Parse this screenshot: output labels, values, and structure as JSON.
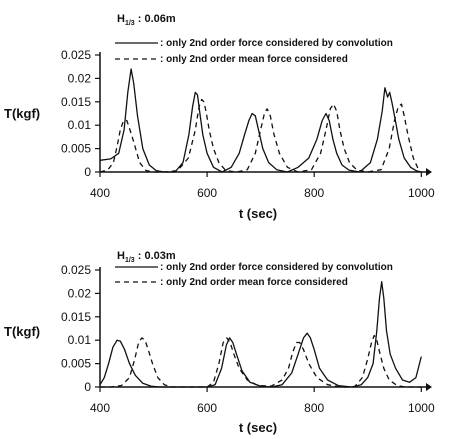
{
  "chart_data": [
    {
      "type": "line",
      "title": "H1/3 : 0.06m",
      "title_main": "H",
      "title_sub": "1/3",
      "title_rest": " : 0.06m",
      "xlabel": "t (sec)",
      "ylabel": "T(kgf)",
      "xlim": [
        400,
        1020
      ],
      "ylim": [
        0,
        0.025
      ],
      "xticks": [
        "400",
        "600",
        "800",
        "1000"
      ],
      "xtick_values": [
        400,
        600,
        800,
        1000
      ],
      "yticks": [
        "0",
        "0.005",
        "0.01",
        "0.015",
        "0.02",
        "0.025"
      ],
      "ytick_values": [
        0,
        0.005,
        0.01,
        0.015,
        0.02,
        0.025
      ],
      "grid": false,
      "legend_position": "top-center",
      "series": [
        {
          "name": ": only 2nd order force considered by convolution",
          "style": "solid",
          "x": [
            400,
            420,
            435,
            445,
            452,
            458,
            463,
            470,
            480,
            492,
            505,
            520,
            540,
            555,
            566,
            573,
            578,
            582,
            586,
            592,
            600,
            612,
            628,
            645,
            660,
            670,
            678,
            684,
            690,
            696,
            704,
            715,
            730,
            750,
            770,
            790,
            805,
            815,
            822,
            828,
            835,
            842,
            852,
            865,
            885,
            905,
            918,
            927,
            932,
            937,
            941,
            945,
            950,
            958,
            968,
            980,
            990,
            1000
          ],
          "y": [
            0.0025,
            0.0028,
            0.004,
            0.009,
            0.017,
            0.022,
            0.019,
            0.012,
            0.005,
            0.0015,
            0.0003,
            0,
            0,
            0.002,
            0.008,
            0.014,
            0.017,
            0.0165,
            0.013,
            0.008,
            0.004,
            0.001,
            0,
            0.001,
            0.004,
            0.008,
            0.011,
            0.0125,
            0.012,
            0.009,
            0.005,
            0.002,
            0.0005,
            0,
            0.001,
            0.003,
            0.007,
            0.011,
            0.0125,
            0.011,
            0.007,
            0.004,
            0.0015,
            0.0004,
            0,
            0.002,
            0.007,
            0.013,
            0.018,
            0.016,
            0.017,
            0.015,
            0.012,
            0.007,
            0.003,
            0.001,
            0.0003,
            0
          ]
        },
        {
          "name": ": only 2nd order mean force considered",
          "style": "dashed",
          "x": [
            400,
            415,
            425,
            432,
            438,
            444,
            450,
            456,
            464,
            474,
            486,
            500,
            520,
            545,
            565,
            578,
            585,
            590,
            594,
            598,
            604,
            612,
            622,
            635,
            655,
            675,
            690,
            700,
            707,
            712,
            718,
            725,
            735,
            750,
            770,
            795,
            812,
            822,
            830,
            836,
            842,
            848,
            856,
            866,
            880,
            900,
            925,
            940,
            950,
            957,
            963,
            968,
            975,
            985,
            995
          ],
          "y": [
            0,
            0.0005,
            0.002,
            0.0055,
            0.009,
            0.011,
            0.011,
            0.009,
            0.006,
            0.002,
            0.0003,
            0,
            0,
            0.0003,
            0.003,
            0.009,
            0.014,
            0.0155,
            0.015,
            0.013,
            0.009,
            0.005,
            0.002,
            0.0003,
            0,
            0.0005,
            0.004,
            0.009,
            0.0125,
            0.0135,
            0.012,
            0.008,
            0.004,
            0.001,
            0,
            0.0005,
            0.004,
            0.009,
            0.0135,
            0.0145,
            0.013,
            0.009,
            0.005,
            0.002,
            0.0004,
            0,
            0.0005,
            0.005,
            0.011,
            0.014,
            0.0145,
            0.012,
            0.008,
            0.003,
            0.0005
          ]
        }
      ]
    },
    {
      "type": "line",
      "title": "H1/3 : 0.03m",
      "title_main": "H",
      "title_sub": "1/3",
      "title_rest": " : 0.03m",
      "xlabel": "t (sec)",
      "ylabel": "T(kgf)",
      "xlim": [
        400,
        1020
      ],
      "ylim": [
        0,
        0.025
      ],
      "xticks": [
        "400",
        "600",
        "800",
        "1000"
      ],
      "xtick_values": [
        400,
        600,
        800,
        1000
      ],
      "yticks": [
        "0",
        "0.005",
        "0.01",
        "0.015",
        "0.02",
        "0.025"
      ],
      "ytick_values": [
        0,
        0.005,
        0.01,
        0.015,
        0.02,
        0.025
      ],
      "grid": false,
      "legend_position": "top-center",
      "series": [
        {
          "name": ": only 2nd order force considered by convolution",
          "style": "solid",
          "x": [
            400,
            408,
            416,
            424,
            432,
            438,
            446,
            455,
            466,
            480,
            495,
            510,
            525,
            545,
            570,
            600,
            615,
            627,
            636,
            642,
            648,
            655,
            665,
            680,
            700,
            720,
            740,
            758,
            770,
            780,
            787,
            793,
            800,
            810,
            825,
            845,
            870,
            888,
            900,
            910,
            917,
            922,
            926,
            930,
            935,
            942,
            952,
            965,
            978,
            990,
            1000
          ],
          "y": [
            0.0005,
            0.002,
            0.005,
            0.0085,
            0.01,
            0.0098,
            0.008,
            0.005,
            0.0025,
            0.0008,
            0.0002,
            0,
            0,
            0,
            0,
            0,
            0.0005,
            0.004,
            0.009,
            0.0105,
            0.0095,
            0.007,
            0.0035,
            0.001,
            0.0002,
            0,
            0.0005,
            0.003,
            0.007,
            0.0105,
            0.0115,
            0.0105,
            0.008,
            0.004,
            0.0015,
            0.0003,
            0,
            0.0005,
            0.002,
            0.005,
            0.012,
            0.019,
            0.0225,
            0.019,
            0.012,
            0.007,
            0.004,
            0.0015,
            0.001,
            0.002,
            0.0065
          ]
        },
        {
          "name": ": only 2nd order mean force considered",
          "style": "dashed",
          "x": [
            400,
            420,
            440,
            455,
            465,
            472,
            478,
            484,
            490,
            498,
            508,
            520,
            535,
            555,
            580,
            600,
            612,
            622,
            630,
            637,
            643,
            650,
            660,
            675,
            695,
            720,
            740,
            752,
            760,
            767,
            773,
            780,
            790,
            805,
            825,
            850,
            875,
            890,
            900,
            907,
            912,
            917,
            923,
            930,
            940,
            955,
            970,
            985,
            1000
          ],
          "y": [
            0,
            0,
            0.0003,
            0.002,
            0.006,
            0.0095,
            0.0105,
            0.01,
            0.008,
            0.005,
            0.002,
            0.0005,
            0,
            0,
            0,
            0,
            0.001,
            0.005,
            0.0095,
            0.0105,
            0.0095,
            0.007,
            0.004,
            0.0015,
            0.0003,
            0.0002,
            0.0015,
            0.004,
            0.0075,
            0.0095,
            0.0095,
            0.008,
            0.005,
            0.002,
            0.0005,
            0,
            0,
            0.002,
            0.006,
            0.0095,
            0.011,
            0.01,
            0.007,
            0.004,
            0.0015,
            0.0003,
            0,
            0,
            0
          ]
        }
      ]
    }
  ]
}
